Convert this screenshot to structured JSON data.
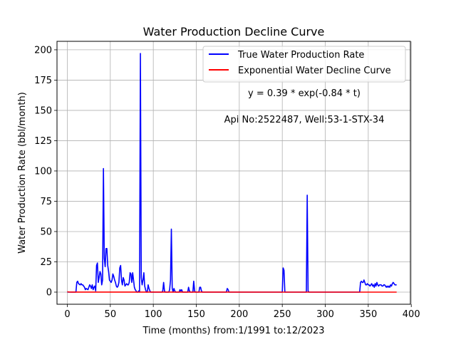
{
  "chart_data": {
    "type": "line",
    "title": "Water Production Decline Curve",
    "xlabel": "Time (months) from:1/1991 to:12/2023",
    "ylabel": "Water Production Rate (bbl/month)",
    "xlim": [
      -12,
      399
    ],
    "ylim": [
      -10,
      207
    ],
    "xticks": [
      0,
      50,
      100,
      150,
      200,
      250,
      300,
      350,
      400
    ],
    "yticks": [
      0,
      25,
      50,
      75,
      100,
      125,
      150,
      175,
      200
    ],
    "grid": true,
    "legend_position": "top-right",
    "annotations": [
      "y = 0.39 * exp(-0.84 * t)",
      "Api No:2522487, Well:53-1-STX-34"
    ],
    "series": [
      {
        "name": "True Water Production Rate",
        "color": "#0000ff",
        "points": [
          [
            0,
            0
          ],
          [
            10,
            0
          ],
          [
            11,
            8
          ],
          [
            12,
            9
          ],
          [
            13,
            7
          ],
          [
            15,
            6
          ],
          [
            16,
            7
          ],
          [
            17,
            6
          ],
          [
            18,
            6
          ],
          [
            19,
            5
          ],
          [
            20,
            4
          ],
          [
            21,
            2
          ],
          [
            22,
            3
          ],
          [
            24,
            2
          ],
          [
            25,
            4
          ],
          [
            26,
            6
          ],
          [
            27,
            5
          ],
          [
            28,
            3
          ],
          [
            29,
            6
          ],
          [
            30,
            2
          ],
          [
            31,
            4
          ],
          [
            32,
            5
          ],
          [
            33,
            1
          ],
          [
            34,
            22
          ],
          [
            35,
            24
          ],
          [
            36,
            8
          ],
          [
            37,
            12
          ],
          [
            38,
            17
          ],
          [
            39,
            15
          ],
          [
            40,
            6
          ],
          [
            41,
            10
          ],
          [
            42,
            102
          ],
          [
            43,
            28
          ],
          [
            44,
            21
          ],
          [
            45,
            36
          ],
          [
            46,
            36
          ],
          [
            47,
            22
          ],
          [
            48,
            17
          ],
          [
            49,
            10
          ],
          [
            50,
            9
          ],
          [
            51,
            8
          ],
          [
            52,
            10
          ],
          [
            53,
            15
          ],
          [
            54,
            13
          ],
          [
            55,
            10
          ],
          [
            56,
            8
          ],
          [
            57,
            5
          ],
          [
            58,
            4
          ],
          [
            59,
            5
          ],
          [
            60,
            8
          ],
          [
            61,
            20
          ],
          [
            62,
            22
          ],
          [
            63,
            10
          ],
          [
            64,
            6
          ],
          [
            65,
            12
          ],
          [
            66,
            10
          ],
          [
            67,
            5
          ],
          [
            68,
            6
          ],
          [
            69,
            7
          ],
          [
            70,
            6
          ],
          [
            71,
            6
          ],
          [
            72,
            8
          ],
          [
            73,
            16
          ],
          [
            74,
            15
          ],
          [
            75,
            8
          ],
          [
            76,
            16
          ],
          [
            77,
            10
          ],
          [
            78,
            4
          ],
          [
            79,
            2
          ],
          [
            80,
            1
          ],
          [
            81,
            0
          ],
          [
            82,
            0
          ],
          [
            83,
            1
          ],
          [
            84,
            0
          ],
          [
            85,
            197
          ],
          [
            86,
            12
          ],
          [
            87,
            6
          ],
          [
            88,
            10
          ],
          [
            89,
            16
          ],
          [
            90,
            5
          ],
          [
            91,
            2
          ],
          [
            92,
            0
          ],
          [
            93,
            0
          ],
          [
            94,
            6
          ],
          [
            95,
            3
          ],
          [
            96,
            1
          ],
          [
            97,
            0
          ],
          [
            110,
            0
          ],
          [
            111,
            1
          ],
          [
            112,
            8
          ],
          [
            113,
            1
          ],
          [
            114,
            0
          ],
          [
            118,
            0
          ],
          [
            119,
            2
          ],
          [
            120,
            10
          ],
          [
            121,
            52
          ],
          [
            122,
            3
          ],
          [
            123,
            0
          ],
          [
            124,
            3
          ],
          [
            125,
            1
          ],
          [
            126,
            0
          ],
          [
            130,
            0
          ],
          [
            131,
            2
          ],
          [
            132,
            1
          ],
          [
            133,
            2
          ],
          [
            134,
            0
          ],
          [
            140,
            0
          ],
          [
            141,
            4
          ],
          [
            142,
            1
          ],
          [
            143,
            0
          ],
          [
            146,
            0
          ],
          [
            147,
            9
          ],
          [
            148,
            1
          ],
          [
            149,
            0
          ],
          [
            153,
            0
          ],
          [
            154,
            4
          ],
          [
            155,
            4
          ],
          [
            156,
            1
          ],
          [
            157,
            0
          ],
          [
            185,
            0
          ],
          [
            186,
            3
          ],
          [
            187,
            2
          ],
          [
            188,
            0
          ],
          [
            250,
            0
          ],
          [
            251,
            20
          ],
          [
            252,
            18
          ],
          [
            253,
            0
          ],
          [
            278,
            0
          ],
          [
            279,
            80
          ],
          [
            280,
            1
          ],
          [
            281,
            0
          ],
          [
            340,
            0
          ],
          [
            341,
            8
          ],
          [
            342,
            9
          ],
          [
            343,
            8
          ],
          [
            344,
            8
          ],
          [
            345,
            10
          ],
          [
            346,
            8
          ],
          [
            347,
            6
          ],
          [
            348,
            6
          ],
          [
            349,
            7
          ],
          [
            350,
            6
          ],
          [
            351,
            6
          ],
          [
            352,
            5
          ],
          [
            353,
            6
          ],
          [
            354,
            7
          ],
          [
            355,
            5
          ],
          [
            356,
            6
          ],
          [
            357,
            4
          ],
          [
            358,
            7
          ],
          [
            359,
            5
          ],
          [
            360,
            8
          ],
          [
            361,
            6
          ],
          [
            362,
            5
          ],
          [
            363,
            6
          ],
          [
            364,
            6
          ],
          [
            365,
            6
          ],
          [
            366,
            5
          ],
          [
            367,
            5
          ],
          [
            368,
            6
          ],
          [
            369,
            6
          ],
          [
            370,
            5
          ],
          [
            371,
            4
          ],
          [
            372,
            5
          ],
          [
            373,
            4
          ],
          [
            374,
            5
          ],
          [
            375,
            4
          ],
          [
            376,
            6
          ],
          [
            377,
            5
          ],
          [
            378,
            7
          ],
          [
            379,
            8
          ],
          [
            380,
            7
          ],
          [
            381,
            6
          ],
          [
            382,
            6
          ],
          [
            383,
            6
          ]
        ]
      },
      {
        "name": "Exponential Water Decline Curve",
        "color": "#ff0000",
        "points": [
          [
            0,
            0.39
          ],
          [
            1,
            0.17
          ],
          [
            2,
            0.07
          ],
          [
            5,
            0.01
          ],
          [
            383,
            0
          ]
        ]
      }
    ]
  }
}
